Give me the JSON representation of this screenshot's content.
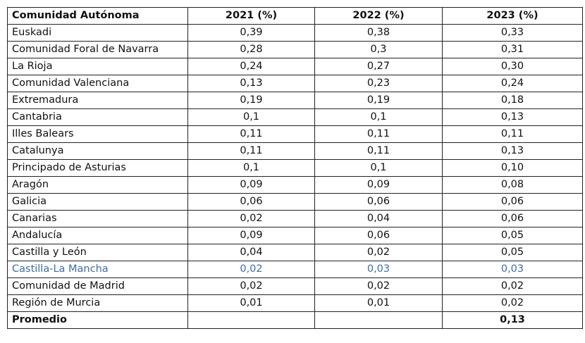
{
  "table": {
    "header": [
      "Comunidad Autónoma",
      "2021 (%)",
      "2022 (%)",
      "2023 (%)"
    ],
    "rows": [
      [
        "Euskadi",
        "0,39",
        "0,38",
        "0,33"
      ],
      [
        "Comunidad Foral de Navarra",
        "0,28",
        "0,3",
        "0,31"
      ],
      [
        "La Rioja",
        "0,24",
        "0,27",
        "0,30"
      ],
      [
        "Comunidad Valenciana",
        "0,13",
        "0,23",
        "0,24"
      ],
      [
        "Extremadura",
        "0,19",
        "0,19",
        "0,18"
      ],
      [
        "Cantabria",
        "0,1",
        "0,1",
        "0,13"
      ],
      [
        "Illes Balears",
        "0,11",
        "0,11",
        "0,11"
      ],
      [
        "Catalunya",
        "0,11",
        "0,11",
        "0,13"
      ],
      [
        "Principado de Asturias",
        "0,1",
        "0,1",
        "0,10"
      ],
      [
        "Aragón",
        "0,09",
        "0,09",
        "0,08"
      ],
      [
        "Galicia",
        "0,06",
        "0,06",
        "0,06"
      ],
      [
        "Canarias",
        "0,02",
        "0,04",
        "0,06"
      ],
      [
        "Andalucía",
        "0,09",
        "0,06",
        "0,05"
      ],
      [
        "Castilla y León",
        "0,04",
        "0,02",
        "0,05"
      ],
      [
        "Castilla-La Mancha",
        "0,02",
        "0,03",
        "0,03"
      ],
      [
        "Comunidad de Madrid",
        "0,02",
        "0,02",
        "0,02"
      ],
      [
        "Región de Murcia",
        "0,01",
        "0,01",
        "0,02"
      ]
    ],
    "footer": {
      "label": "Promedio",
      "value": "0,13"
    }
  }
}
